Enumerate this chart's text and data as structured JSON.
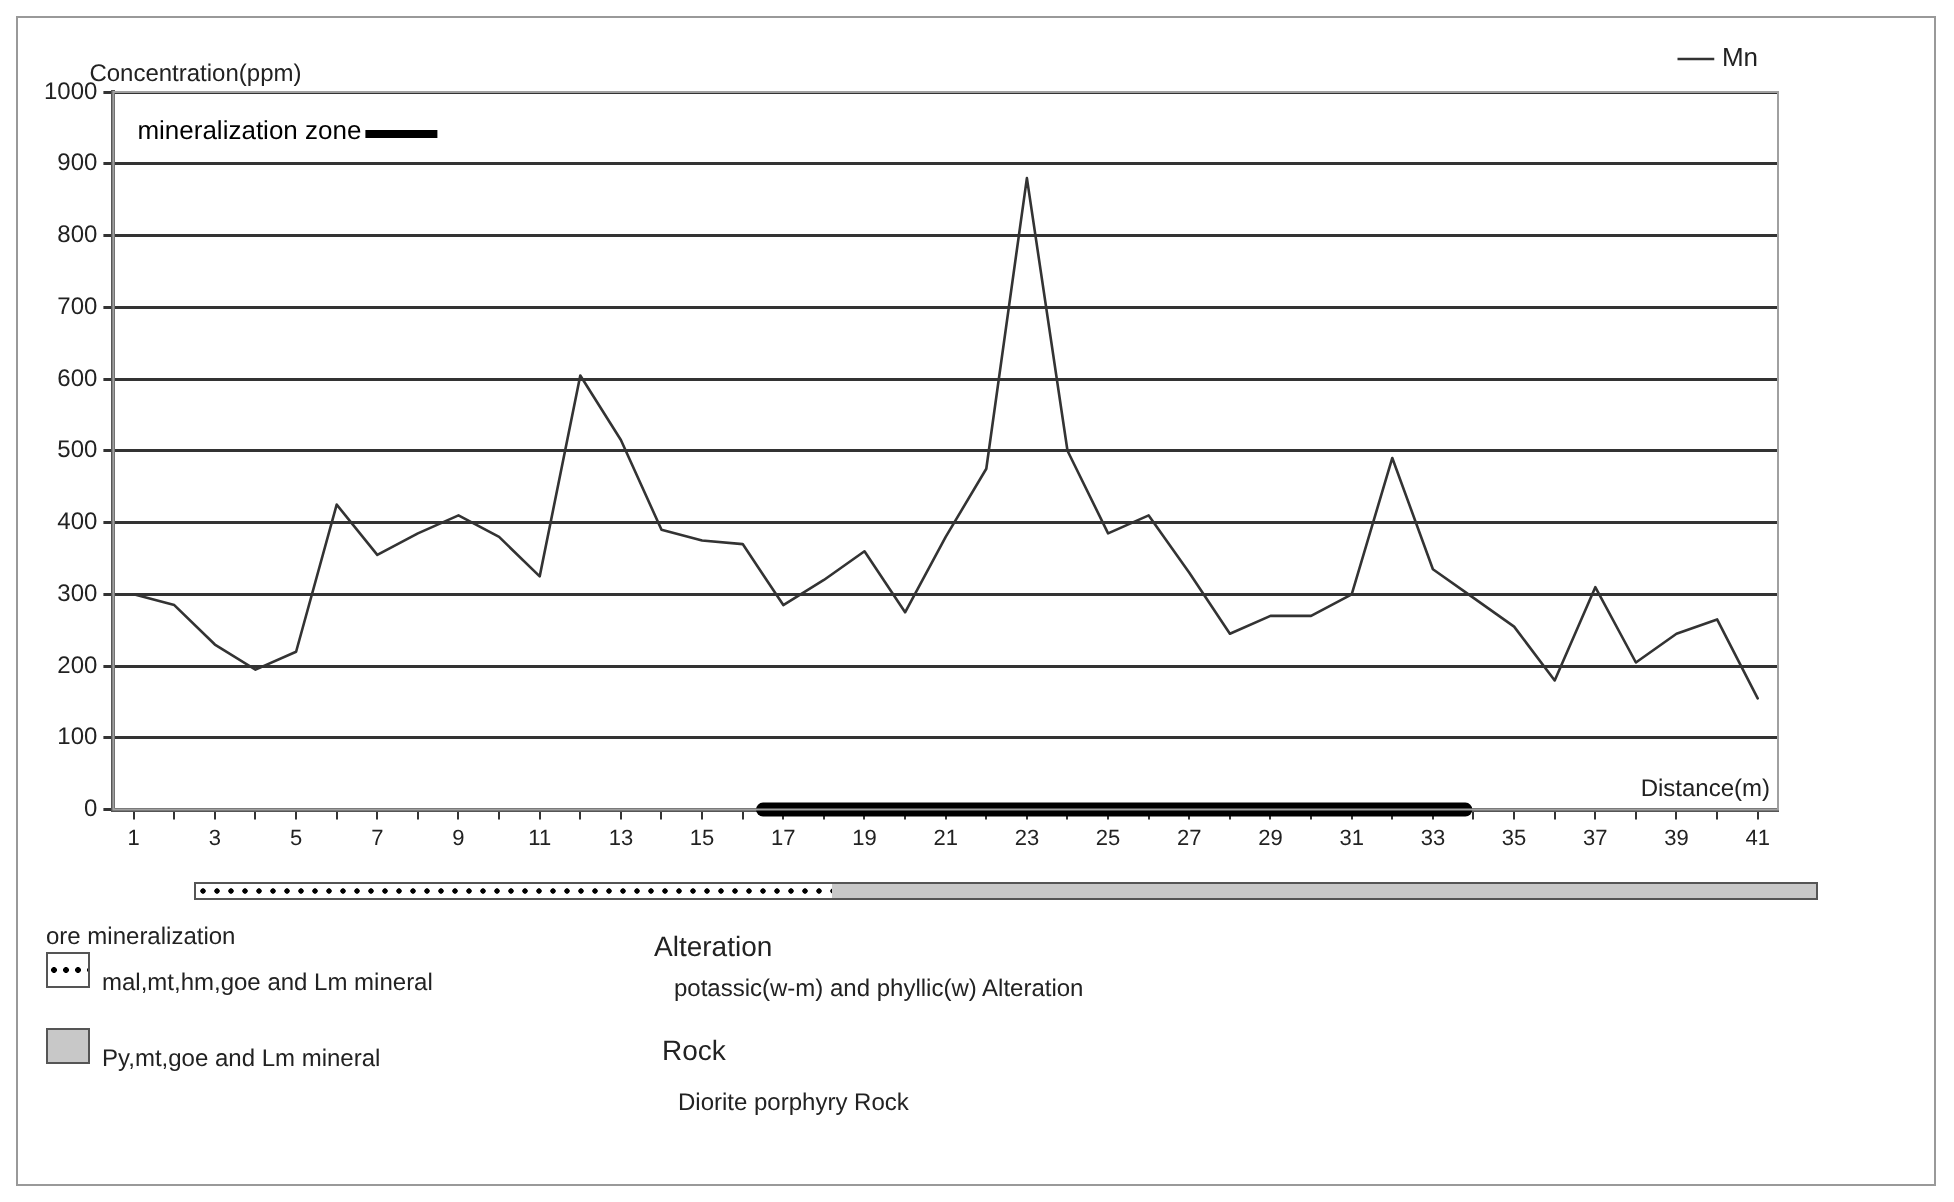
{
  "chart_data": {
    "type": "line",
    "ylabel": "Concentration(ppm)",
    "xlabel": "Distance(m)",
    "x": [
      1,
      2,
      3,
      4,
      5,
      6,
      7,
      8,
      9,
      10,
      11,
      12,
      13,
      14,
      15,
      16,
      17,
      18,
      19,
      20,
      21,
      22,
      23,
      24,
      25,
      26,
      27,
      28,
      29,
      30,
      31,
      32,
      33,
      34,
      35,
      36,
      37,
      38,
      39,
      40,
      41
    ],
    "series": [
      {
        "name": "Mn",
        "color": "#333333",
        "values": [
          300,
          285,
          230,
          195,
          220,
          425,
          355,
          385,
          410,
          380,
          325,
          605,
          515,
          390,
          375,
          370,
          285,
          320,
          360,
          275,
          380,
          475,
          880,
          500,
          385,
          410,
          330,
          245,
          270,
          270,
          300,
          490,
          335,
          295,
          255,
          180,
          310,
          205,
          245,
          265,
          155
        ]
      },
      {
        "name": "mineralization zone",
        "color": "#000000",
        "x": [
          16.5,
          33.8
        ],
        "values": [
          0,
          0
        ]
      }
    ],
    "xlim": [
      0.5,
      41.5
    ],
    "xticks": [
      1,
      {
        "value": 2,
        "label": null
      },
      3,
      {
        "value": 4,
        "label": null
      },
      5,
      {
        "value": 6,
        "label": null
      },
      7,
      {
        "value": 8,
        "label": null
      },
      9,
      {
        "value": 10,
        "label": null
      },
      11,
      {
        "value": 12,
        "label": null
      },
      13,
      {
        "value": 14,
        "label": null
      },
      15,
      {
        "value": 16,
        "label": null
      },
      17,
      {
        "value": 18,
        "label": null
      },
      19,
      {
        "value": 20,
        "label": null
      },
      21,
      {
        "value": 22,
        "label": null
      },
      23,
      {
        "value": 24,
        "label": null
      },
      25,
      {
        "value": 26,
        "label": null
      },
      27,
      {
        "value": 28,
        "label": null
      },
      29,
      {
        "value": 30,
        "label": null
      },
      31,
      {
        "value": 32,
        "label": null
      },
      33,
      {
        "value": 34,
        "label": null
      },
      35,
      {
        "value": 36,
        "label": null
      },
      37,
      {
        "value": 38,
        "label": null
      },
      39,
      {
        "value": 40,
        "label": null
      },
      41
    ],
    "ylim": [
      0,
      1000
    ],
    "yticks": [
      0,
      100,
      200,
      300,
      400,
      500,
      600,
      700,
      800,
      900,
      1000
    ],
    "grid": "y",
    "legend": "top right",
    "marker": "none",
    "line_style": "solid",
    "annotations": [
      "ore mineralization",
      "mal,mt,hm,goe and Lm mineral",
      "Py,mt,goe and Lm mineral",
      "Alteration",
      "potassic(w-m) and phyllic(w) Alteration",
      "Rock",
      "Diorite porphyry Rock"
    ]
  }
}
